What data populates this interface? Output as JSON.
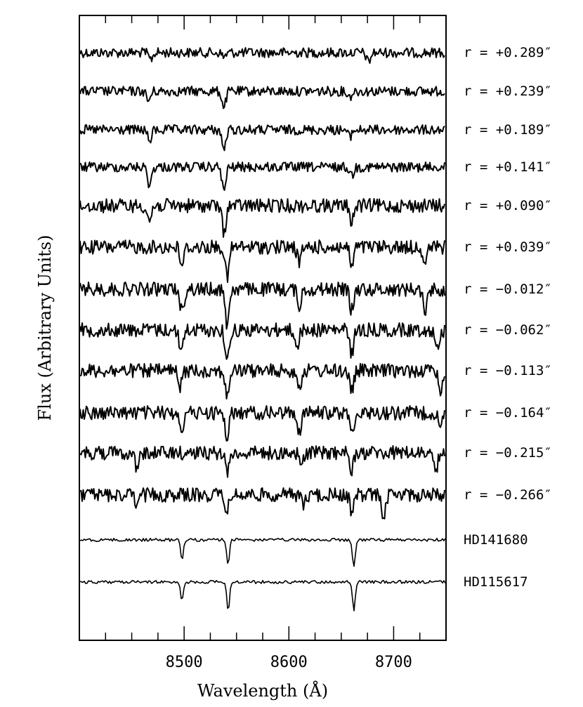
{
  "chart_data": {
    "type": "line",
    "xlabel": "Wavelength (Å)",
    "ylabel": "Flux (Arbitrary Units)",
    "xlim": [
      8400,
      8750
    ],
    "x_ticks": [
      "8500",
      "8600",
      "8700"
    ],
    "x_tick_values": [
      8500,
      8600,
      8700
    ],
    "grid": false,
    "legend": "none",
    "series": [
      {
        "label": "r = +0.289″",
        "kind": "noisy",
        "lines": [
          [
            8468,
            10
          ],
          [
            8538,
            6
          ],
          [
            8676,
            14
          ]
        ]
      },
      {
        "label": "r = +0.239″",
        "kind": "noisy",
        "lines": [
          [
            8466,
            14
          ],
          [
            8538,
            22
          ],
          [
            8658,
            8
          ]
        ]
      },
      {
        "label": "r = +0.189″",
        "kind": "noisy",
        "lines": [
          [
            8467,
            16
          ],
          [
            8538,
            28
          ],
          [
            8658,
            10
          ]
        ]
      },
      {
        "label": "r = +0.141″",
        "kind": "noisy",
        "lines": [
          [
            8467,
            26
          ],
          [
            8538,
            34
          ],
          [
            8660,
            12
          ]
        ]
      },
      {
        "label": "r = +0.090″",
        "kind": "noisy",
        "lines": [
          [
            8467,
            22
          ],
          [
            8538,
            38
          ],
          [
            8660,
            22
          ]
        ]
      },
      {
        "label": "r = +0.039″",
        "kind": "noisy",
        "lines": [
          [
            8498,
            26
          ],
          [
            8541,
            44
          ],
          [
            8610,
            22
          ],
          [
            8660,
            26
          ],
          [
            8730,
            24
          ]
        ]
      },
      {
        "label": "r = −0.012″",
        "kind": "noisy",
        "lines": [
          [
            8498,
            32
          ],
          [
            8541,
            50
          ],
          [
            8610,
            24
          ],
          [
            8660,
            30
          ],
          [
            8730,
            30
          ]
        ]
      },
      {
        "label": "r = −0.062″",
        "kind": "noisy",
        "lines": [
          [
            8497,
            30
          ],
          [
            8541,
            46
          ],
          [
            8608,
            24
          ],
          [
            8660,
            34
          ],
          [
            8742,
            30
          ]
        ]
      },
      {
        "label": "r = −0.113″",
        "kind": "noisy",
        "lines": [
          [
            8496,
            24
          ],
          [
            8541,
            38
          ],
          [
            8610,
            24
          ],
          [
            8660,
            30
          ],
          [
            8745,
            28
          ]
        ]
      },
      {
        "label": "r = −0.164″",
        "kind": "noisy",
        "lines": [
          [
            8498,
            22
          ],
          [
            8541,
            34
          ],
          [
            8610,
            26
          ],
          [
            8660,
            30
          ],
          [
            8745,
            22
          ]
        ]
      },
      {
        "label": "r = −0.215″",
        "kind": "noisy",
        "lines": [
          [
            8455,
            22
          ],
          [
            8541,
            26
          ],
          [
            8612,
            18
          ],
          [
            8660,
            24
          ],
          [
            8740,
            30
          ]
        ]
      },
      {
        "label": "r = −0.266″",
        "kind": "noisy",
        "lines": [
          [
            8455,
            18
          ],
          [
            8541,
            22
          ],
          [
            8614,
            16
          ],
          [
            8660,
            22
          ],
          [
            8690,
            32
          ]
        ]
      },
      {
        "label": "HD141680",
        "kind": "template",
        "lines": [
          [
            8498,
            28
          ],
          [
            8542,
            36
          ],
          [
            8662,
            40
          ]
        ]
      },
      {
        "label": "HD115617",
        "kind": "template",
        "lines": [
          [
            8498,
            26
          ],
          [
            8542,
            42
          ],
          [
            8662,
            40
          ]
        ]
      }
    ]
  }
}
